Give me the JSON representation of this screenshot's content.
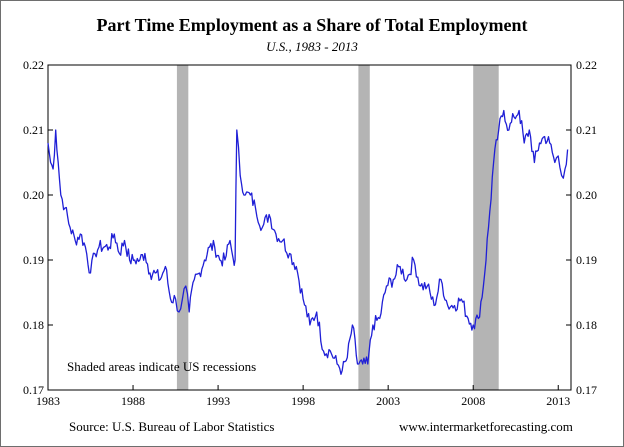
{
  "chart_data": {
    "type": "line",
    "title": "Part Time Employment as a Share of Total Employment",
    "subtitle": "U.S., 1983 - 2013",
    "xlabel": "",
    "ylabel": "",
    "xlim": [
      1983,
      2013.75
    ],
    "ylim": [
      0.17,
      0.22
    ],
    "x_ticks": [
      1983,
      1988,
      1993,
      1998,
      2003,
      2008,
      2013
    ],
    "x_tick_labels": [
      "1983",
      "1988",
      "1993",
      "1998",
      "2003",
      "2008",
      "2013"
    ],
    "y_ticks": [
      0.17,
      0.18,
      0.19,
      0.2,
      0.21,
      0.22
    ],
    "y_tick_labels": [
      "0.17",
      "0.18",
      "0.19",
      "0.20",
      "0.21",
      "0.22"
    ],
    "grid": false,
    "line_color": "#1f1fd6",
    "recession_color": "#b4b4b4",
    "recessions": [
      {
        "start": 1990.58,
        "end": 1991.25
      },
      {
        "start": 2001.25,
        "end": 2001.92
      },
      {
        "start": 2008.0,
        "end": 2009.5
      }
    ],
    "annotation": "Shaded areas indicate US recessions",
    "source": "Source: U.S. Bureau of Labor Statistics",
    "credit": "www.intermarketforecasting.com",
    "series": [
      {
        "x": [
          1983.0,
          1983.15,
          1983.3,
          1983.45,
          1983.6,
          1983.75,
          1984.0,
          1984.3,
          1984.6,
          1984.9,
          1985.2,
          1985.5,
          1985.75,
          1986.0,
          1986.3,
          1986.6,
          1986.9,
          1987.2,
          1987.5,
          1987.8,
          1988.1,
          1988.4,
          1988.7,
          1989.0,
          1989.3,
          1989.6,
          1989.9,
          1990.2,
          1990.5,
          1990.7,
          1990.9,
          1991.1,
          1991.3,
          1991.6,
          1991.9,
          1992.2,
          1992.5,
          1992.8,
          1993.1,
          1993.4,
          1993.7,
          1993.9,
          1994.0,
          1994.1,
          1994.3,
          1994.6,
          1994.9,
          1995.2,
          1995.6,
          1996.0,
          1996.4,
          1996.8,
          1997.2,
          1997.6,
          1998.0,
          1998.4,
          1998.8,
          1999.2,
          1999.6,
          2000.0,
          2000.3,
          2000.6,
          2000.9,
          2001.2,
          2001.5,
          2001.8,
          2002.1,
          2002.5,
          2002.9,
          2003.3,
          2003.7,
          2004.1,
          2004.5,
          2004.9,
          2005.3,
          2005.7,
          2006.1,
          2006.5,
          2006.9,
          2007.3,
          2007.7,
          2008.0,
          2008.3,
          2008.6,
          2008.9,
          2009.2,
          2009.5,
          2009.8,
          2010.1,
          2010.4,
          2010.7,
          2011.0,
          2011.3,
          2011.6,
          2011.9,
          2012.2,
          2012.5,
          2012.8,
          2013.0,
          2013.2,
          2013.4,
          2013.55
        ],
        "y": [
          0.208,
          0.205,
          0.204,
          0.21,
          0.205,
          0.2,
          0.198,
          0.195,
          0.193,
          0.194,
          0.192,
          0.188,
          0.191,
          0.192,
          0.192,
          0.192,
          0.194,
          0.191,
          0.193,
          0.19,
          0.19,
          0.19,
          0.191,
          0.188,
          0.188,
          0.187,
          0.189,
          0.184,
          0.184,
          0.182,
          0.184,
          0.186,
          0.182,
          0.187,
          0.188,
          0.19,
          0.192,
          0.192,
          0.19,
          0.19,
          0.193,
          0.19,
          0.19,
          0.21,
          0.203,
          0.2,
          0.2,
          0.198,
          0.195,
          0.197,
          0.194,
          0.193,
          0.191,
          0.189,
          0.184,
          0.18,
          0.182,
          0.176,
          0.176,
          0.174,
          0.173,
          0.175,
          0.18,
          0.174,
          0.174,
          0.174,
          0.18,
          0.181,
          0.186,
          0.187,
          0.189,
          0.187,
          0.19,
          0.186,
          0.186,
          0.183,
          0.187,
          0.183,
          0.183,
          0.184,
          0.181,
          0.18,
          0.181,
          0.186,
          0.195,
          0.205,
          0.21,
          0.213,
          0.21,
          0.212,
          0.213,
          0.208,
          0.21,
          0.205,
          0.208,
          0.209,
          0.208,
          0.205,
          0.206,
          0.203,
          0.204,
          0.207
        ]
      }
    ]
  }
}
